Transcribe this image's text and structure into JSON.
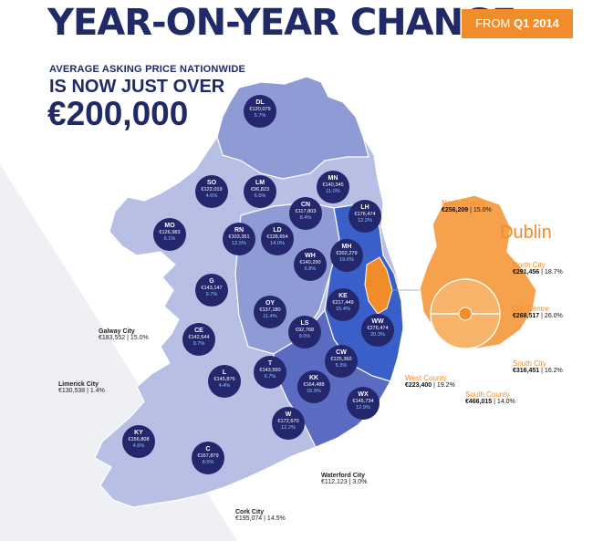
{
  "header": {
    "title": "YEAR-ON-YEAR CHANGE",
    "badge_prefix": "FROM",
    "badge_period": "Q1 2014",
    "subtitle_line1": "AVERAGE ASKING PRICE NATIONWIDE",
    "subtitle_line2": "IS NOW JUST OVER",
    "headline_value": "€200,000"
  },
  "colors": {
    "title": "#1f2a66",
    "accent": "#f08c2a",
    "pin": "#24276b",
    "pin_change": "#8fc8ff",
    "region_light": "#b7c0e4",
    "region_mid": "#8f9bd5",
    "region_dark": "#5b6bc2",
    "region_leinster": "#3a5fc8"
  },
  "counties": [
    {
      "code": "DL",
      "price": "€120,079",
      "change": "5.7%"
    },
    {
      "code": "SO",
      "price": "€122,019",
      "change": "4.6%"
    },
    {
      "code": "LM",
      "price": "€96,823",
      "change": "6.5%"
    },
    {
      "code": "MN",
      "price": "€140,345",
      "change": "11.0%"
    },
    {
      "code": "CN",
      "price": "€117,803",
      "change": "8.4%"
    },
    {
      "code": "LH",
      "price": "€176,474",
      "change": "12.2%"
    },
    {
      "code": "MO",
      "price": "€126,983",
      "change": "6.1%"
    },
    {
      "code": "RN",
      "price": "€103,351",
      "change": "12.5%"
    },
    {
      "code": "LD",
      "price": "€128,654",
      "change": "14.0%"
    },
    {
      "code": "MH",
      "price": "€202,279",
      "change": "19.6%"
    },
    {
      "code": "WH",
      "price": "€140,290",
      "change": "6.8%"
    },
    {
      "code": "G",
      "price": "€143,147",
      "change": "9.7%"
    },
    {
      "code": "OY",
      "price": "€137,180",
      "change": "11.4%"
    },
    {
      "code": "KE",
      "price": "€217,449",
      "change": "15.4%"
    },
    {
      "code": "WW",
      "price": "€276,474",
      "change": "20.3%"
    },
    {
      "code": "CE",
      "price": "€142,644",
      "change": "9.7%"
    },
    {
      "code": "LS",
      "price": "€92,768",
      "change": "9.0%"
    },
    {
      "code": "CW",
      "price": "€125,360",
      "change": "5.3%"
    },
    {
      "code": "L",
      "price": "€145,876",
      "change": "4.4%"
    },
    {
      "code": "T",
      "price": "€143,550",
      "change": "6.7%"
    },
    {
      "code": "KK",
      "price": "€164,488",
      "change": "16.9%"
    },
    {
      "code": "WX",
      "price": "€145,734",
      "change": "12.9%"
    },
    {
      "code": "W",
      "price": "€172,670",
      "change": "12.2%"
    },
    {
      "code": "KY",
      "price": "€156,808",
      "change": "4.6%"
    },
    {
      "code": "C",
      "price": "€167,879",
      "change": "8.5%"
    }
  ],
  "cities": [
    {
      "name": "Galway City",
      "price": "€183,552",
      "change": "15.0%"
    },
    {
      "name": "Limerick City",
      "price": "€130,538",
      "change": "1.4%"
    },
    {
      "name": "Waterford City",
      "price": "€112,123",
      "change": "3.0%"
    },
    {
      "name": "Cork City",
      "price": "€195,074",
      "change": "14.5%"
    }
  ],
  "dublin": {
    "title": "Dublin",
    "areas": [
      {
        "name": "North County",
        "price": "€256,209",
        "change": "15.0%"
      },
      {
        "name": "North City",
        "price": "€291,456",
        "change": "18.7%"
      },
      {
        "name": "City Centre",
        "price": "€268,517",
        "change": "26.0%"
      },
      {
        "name": "South City",
        "price": "€316,451",
        "change": "16.2%"
      },
      {
        "name": "South County",
        "price": "€466,015",
        "change": "14.0%"
      },
      {
        "name": "West County",
        "price": "€223,400",
        "change": "19.2%"
      }
    ]
  }
}
